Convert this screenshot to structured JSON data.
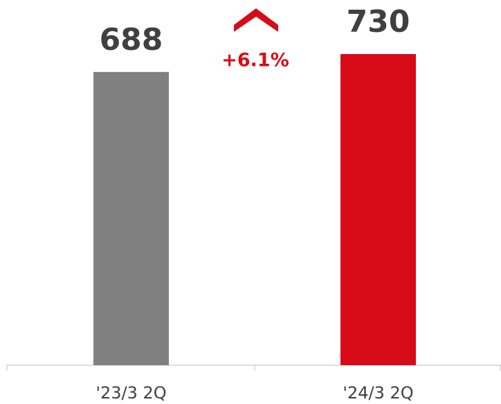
{
  "chart_data": {
    "type": "bar",
    "categories": [
      "'23/3 2Q",
      "'24/3 2Q"
    ],
    "values": [
      688,
      730
    ],
    "colors": [
      "#808080",
      "#d70c18"
    ],
    "annotation": "+6.1%"
  }
}
